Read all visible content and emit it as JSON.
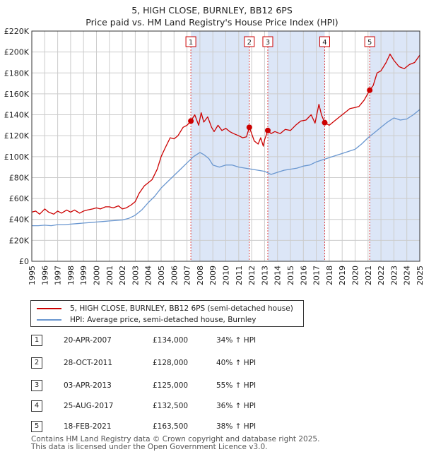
{
  "title": {
    "line1": "5, HIGH CLOSE, BURNLEY, BB12 6PS",
    "line2": "Price paid vs. HM Land Registry's House Price Index (HPI)"
  },
  "chart_data": {
    "type": "line",
    "x_range": [
      1995,
      2025
    ],
    "ylim": [
      0,
      220000
    ],
    "y_ticks": [
      0,
      20000,
      40000,
      60000,
      80000,
      100000,
      120000,
      140000,
      160000,
      180000,
      200000,
      220000
    ],
    "y_tick_labels": [
      "£0",
      "£20K",
      "£40K",
      "£60K",
      "£80K",
      "£100K",
      "£120K",
      "£140K",
      "£160K",
      "£180K",
      "£200K",
      "£220K"
    ],
    "x_ticks": [
      1995,
      1996,
      1997,
      1998,
      1999,
      2000,
      2001,
      2002,
      2003,
      2004,
      2005,
      2006,
      2007,
      2008,
      2009,
      2010,
      2011,
      2012,
      2013,
      2014,
      2015,
      2016,
      2017,
      2018,
      2019,
      2020,
      2021,
      2022,
      2023,
      2024,
      2025
    ],
    "x_tick_labels": [
      "1995",
      "1996",
      "1997",
      "1998",
      "1999",
      "2000",
      "2001",
      "2002",
      "2003",
      "2004",
      "2005",
      "2006",
      "2007",
      "2008",
      "2009",
      "2010",
      "2011",
      "2012",
      "2013",
      "2014",
      "2015",
      "2016",
      "2017",
      "2018",
      "2019",
      "2020",
      "2021",
      "2022",
      "2023",
      "2024",
      "2025"
    ],
    "grid": true,
    "background_color": "#ffffff",
    "grid_color": "#cccccc",
    "shade_color": "#dce6f7",
    "series": [
      {
        "name": "5, HIGH CLOSE, BURNLEY, BB12 6PS (semi-detached house)",
        "color": "#cc0000",
        "points": [
          [
            1995.0,
            47000
          ],
          [
            1995.3,
            48000
          ],
          [
            1995.6,
            45000
          ],
          [
            1996.0,
            50000
          ],
          [
            1996.3,
            47000
          ],
          [
            1996.7,
            45000
          ],
          [
            1997.0,
            48000
          ],
          [
            1997.3,
            46000
          ],
          [
            1997.7,
            49000
          ],
          [
            1998.0,
            47000
          ],
          [
            1998.3,
            49000
          ],
          [
            1998.7,
            46000
          ],
          [
            1999.0,
            48000
          ],
          [
            1999.3,
            49000
          ],
          [
            1999.7,
            50000
          ],
          [
            2000.0,
            51000
          ],
          [
            2000.3,
            50000
          ],
          [
            2000.7,
            52000
          ],
          [
            2001.0,
            52000
          ],
          [
            2001.3,
            51000
          ],
          [
            2001.7,
            53000
          ],
          [
            2002.0,
            50000
          ],
          [
            2002.3,
            51000
          ],
          [
            2002.7,
            54000
          ],
          [
            2003.0,
            57000
          ],
          [
            2003.3,
            65000
          ],
          [
            2003.7,
            72000
          ],
          [
            2004.0,
            75000
          ],
          [
            2004.3,
            78000
          ],
          [
            2004.7,
            88000
          ],
          [
            2005.0,
            100000
          ],
          [
            2005.3,
            108000
          ],
          [
            2005.7,
            118000
          ],
          [
            2006.0,
            117000
          ],
          [
            2006.3,
            120000
          ],
          [
            2006.7,
            128000
          ],
          [
            2007.0,
            130000
          ],
          [
            2007.3,
            134000
          ],
          [
            2007.6,
            140000
          ],
          [
            2007.9,
            130000
          ],
          [
            2008.1,
            142000
          ],
          [
            2008.3,
            133000
          ],
          [
            2008.6,
            138000
          ],
          [
            2008.9,
            128000
          ],
          [
            2009.1,
            124000
          ],
          [
            2009.4,
            130000
          ],
          [
            2009.7,
            125000
          ],
          [
            2010.0,
            127000
          ],
          [
            2010.3,
            124000
          ],
          [
            2010.6,
            122000
          ],
          [
            2011.0,
            120000
          ],
          [
            2011.3,
            118000
          ],
          [
            2011.6,
            119000
          ],
          [
            2011.82,
            128000
          ],
          [
            2012.0,
            122000
          ],
          [
            2012.2,
            115000
          ],
          [
            2012.5,
            112000
          ],
          [
            2012.7,
            118000
          ],
          [
            2012.9,
            110000
          ],
          [
            2013.0,
            116000
          ],
          [
            2013.25,
            125000
          ],
          [
            2013.5,
            122000
          ],
          [
            2013.8,
            124000
          ],
          [
            2014.2,
            122000
          ],
          [
            2014.6,
            126000
          ],
          [
            2015.0,
            125000
          ],
          [
            2015.4,
            130000
          ],
          [
            2015.8,
            134000
          ],
          [
            2016.2,
            135000
          ],
          [
            2016.6,
            140000
          ],
          [
            2016.9,
            132000
          ],
          [
            2017.2,
            150000
          ],
          [
            2017.4,
            140000
          ],
          [
            2017.65,
            132500
          ],
          [
            2018.0,
            130000
          ],
          [
            2018.4,
            134000
          ],
          [
            2018.8,
            138000
          ],
          [
            2019.2,
            142000
          ],
          [
            2019.6,
            146000
          ],
          [
            2020.0,
            147000
          ],
          [
            2020.3,
            148000
          ],
          [
            2020.7,
            154000
          ],
          [
            2021.13,
            163500
          ],
          [
            2021.4,
            168000
          ],
          [
            2021.7,
            180000
          ],
          [
            2022.0,
            182000
          ],
          [
            2022.4,
            190000
          ],
          [
            2022.7,
            198000
          ],
          [
            2023.0,
            192000
          ],
          [
            2023.4,
            186000
          ],
          [
            2023.8,
            184000
          ],
          [
            2024.2,
            188000
          ],
          [
            2024.6,
            190000
          ],
          [
            2025.0,
            197000
          ]
        ]
      },
      {
        "name": "HPI: Average price, semi-detached house, Burnley",
        "color": "#6a97d0",
        "points": [
          [
            1995.0,
            34000
          ],
          [
            1995.5,
            34000
          ],
          [
            1996.0,
            34500
          ],
          [
            1996.5,
            34000
          ],
          [
            1997.0,
            35000
          ],
          [
            1997.5,
            35000
          ],
          [
            1998.0,
            35500
          ],
          [
            1998.5,
            36000
          ],
          [
            1999.0,
            36500
          ],
          [
            1999.5,
            37000
          ],
          [
            2000.0,
            37500
          ],
          [
            2000.5,
            38000
          ],
          [
            2001.0,
            38500
          ],
          [
            2001.5,
            39000
          ],
          [
            2002.0,
            39500
          ],
          [
            2002.5,
            41000
          ],
          [
            2003.0,
            44000
          ],
          [
            2003.5,
            49000
          ],
          [
            2004.0,
            56000
          ],
          [
            2004.5,
            62000
          ],
          [
            2005.0,
            70000
          ],
          [
            2005.5,
            76000
          ],
          [
            2006.0,
            82000
          ],
          [
            2006.5,
            88000
          ],
          [
            2007.0,
            94000
          ],
          [
            2007.5,
            100000
          ],
          [
            2008.0,
            104000
          ],
          [
            2008.3,
            102000
          ],
          [
            2008.7,
            98000
          ],
          [
            2009.0,
            92000
          ],
          [
            2009.5,
            90000
          ],
          [
            2010.0,
            92000
          ],
          [
            2010.5,
            92000
          ],
          [
            2011.0,
            90000
          ],
          [
            2011.5,
            89000
          ],
          [
            2012.0,
            88000
          ],
          [
            2012.5,
            87000
          ],
          [
            2013.0,
            86000
          ],
          [
            2013.5,
            83000
          ],
          [
            2014.0,
            85000
          ],
          [
            2014.5,
            87000
          ],
          [
            2015.0,
            88000
          ],
          [
            2015.5,
            89000
          ],
          [
            2016.0,
            91000
          ],
          [
            2016.5,
            92000
          ],
          [
            2017.0,
            95000
          ],
          [
            2017.5,
            97000
          ],
          [
            2018.0,
            99000
          ],
          [
            2018.5,
            101000
          ],
          [
            2019.0,
            103000
          ],
          [
            2019.5,
            105000
          ],
          [
            2020.0,
            107000
          ],
          [
            2020.5,
            112000
          ],
          [
            2021.0,
            118000
          ],
          [
            2021.5,
            123000
          ],
          [
            2022.0,
            128000
          ],
          [
            2022.5,
            133000
          ],
          [
            2023.0,
            137000
          ],
          [
            2023.5,
            135000
          ],
          [
            2024.0,
            136000
          ],
          [
            2024.5,
            140000
          ],
          [
            2025.0,
            145000
          ]
        ]
      }
    ],
    "sales": [
      {
        "label": "1",
        "x": 2007.3,
        "y": 134000
      },
      {
        "label": "2",
        "x": 2011.82,
        "y": 128000
      },
      {
        "label": "3",
        "x": 2013.25,
        "y": 125000
      },
      {
        "label": "4",
        "x": 2017.65,
        "y": 132500
      },
      {
        "label": "5",
        "x": 2021.13,
        "y": 163500
      }
    ]
  },
  "legend": {
    "items": [
      {
        "label": "5, HIGH CLOSE, BURNLEY, BB12 6PS (semi-detached house)",
        "color": "#cc0000"
      },
      {
        "label": "HPI: Average price, semi-detached house, Burnley",
        "color": "#6a97d0"
      }
    ]
  },
  "sales_table": [
    {
      "num": "1",
      "date": "20-APR-2007",
      "price": "£134,000",
      "hpi": "34% ↑ HPI"
    },
    {
      "num": "2",
      "date": "28-OCT-2011",
      "price": "£128,000",
      "hpi": "40% ↑ HPI"
    },
    {
      "num": "3",
      "date": "03-APR-2013",
      "price": "£125,000",
      "hpi": "55% ↑ HPI"
    },
    {
      "num": "4",
      "date": "25-AUG-2017",
      "price": "£132,500",
      "hpi": "36% ↑ HPI"
    },
    {
      "num": "5",
      "date": "18-FEB-2021",
      "price": "£163,500",
      "hpi": "38% ↑ HPI"
    }
  ],
  "footer": {
    "line1": "Contains HM Land Registry data © Crown copyright and database right 2025.",
    "line2": "This data is licensed under the Open Government Licence v3.0."
  }
}
